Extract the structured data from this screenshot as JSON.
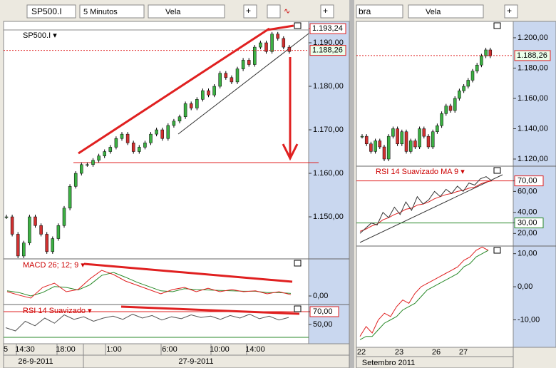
{
  "left": {
    "toolbar": {
      "symbol": "SP500.I",
      "interval": "5 Minutos",
      "style": "Vela"
    },
    "price": {
      "header": "SP500.I ▾",
      "ylim": [
        1140.5,
        1192.95
      ],
      "yticks": [
        {
          "value": 1190,
          "label": "1.190,00"
        },
        {
          "value": 1180,
          "label": "1.180,00"
        },
        {
          "value": 1170,
          "label": "1.170,00"
        },
        {
          "value": 1160,
          "label": "1.160,00"
        },
        {
          "value": 1150,
          "label": "1.150,00"
        }
      ],
      "high": {
        "value": 1193.24,
        "label": "1.193,24"
      },
      "last": {
        "value": 1188.26,
        "label": "1.188,26"
      },
      "closes": [
        1150,
        1146,
        1141,
        1144,
        1150,
        1148,
        1146,
        1142,
        1145,
        1148,
        1152,
        1157,
        1160,
        1162,
        1162,
        1163,
        1164,
        1165,
        1166,
        1168,
        1169,
        1167,
        1165,
        1166,
        1167,
        1169,
        1170,
        1168,
        1171,
        1172,
        1173,
        1176,
        1175,
        1177,
        1179,
        1178,
        1180,
        1183,
        1182,
        1181,
        1184,
        1186,
        1185,
        1189,
        1190,
        1188,
        1192,
        1191,
        1189,
        1188
      ]
    },
    "macd": {
      "header": "MACD 26; 12; 9 ▾",
      "ylim": [
        -2,
        8.5
      ],
      "yticks": [
        {
          "value": 0,
          "label": "0,00"
        }
      ],
      "macd": [
        1.0,
        0.2,
        -0.5,
        2.0,
        3.0,
        1.0,
        1.5,
        4.0,
        6.0,
        5.0,
        3.5,
        2.5,
        1.5,
        0.5,
        1.5,
        2.0,
        1.0,
        1.8,
        1.0,
        1.5,
        1.0,
        1.2,
        0.5,
        1.0,
        0.3
      ],
      "signal": [
        1.2,
        0.8,
        0.0,
        0.8,
        2.2,
        2.0,
        1.4,
        2.6,
        4.8,
        5.5,
        4.4,
        3.2,
        2.2,
        1.2,
        1.0,
        1.7,
        1.5,
        1.4,
        1.3,
        1.2,
        1.1,
        1.1,
        0.8,
        0.8,
        0.6
      ]
    },
    "rsi": {
      "header": "RSI 14 Suavizado ▾",
      "ylim": [
        20,
        80
      ],
      "yticks": [
        {
          "value": 70,
          "label": "70,00"
        },
        {
          "value": 50,
          "label": "50,00"
        }
      ],
      "values": [
        45,
        40,
        55,
        48,
        60,
        52,
        65,
        58,
        62,
        55,
        60,
        63,
        58,
        66,
        60,
        64,
        57,
        62,
        59,
        65,
        61,
        63,
        58,
        64,
        60,
        66,
        59,
        63,
        57,
        61
      ]
    },
    "xticks": [
      "5",
      "14:30",
      "18:00",
      "1:00",
      "6:00",
      "10:00",
      "14:00"
    ],
    "dates": [
      "26-9-2011",
      "27-9-2011"
    ]
  },
  "right": {
    "toolbar": {
      "symbol": "bra",
      "style": "Vela"
    },
    "price": {
      "ylim": [
        1115.3,
        1210.8
      ],
      "yticks": [
        {
          "value": 1200,
          "label": "1.200,00"
        },
        {
          "value": 1180,
          "label": "1.180,00"
        },
        {
          "value": 1160,
          "label": "1.160,00"
        },
        {
          "value": 1140,
          "label": "1.140,00"
        },
        {
          "value": 1120,
          "label": "1.120,00"
        }
      ],
      "last": {
        "value": 1188.26,
        "label": "1.188,26"
      },
      "closes": [
        1135,
        1130,
        1125,
        1132,
        1128,
        1120,
        1135,
        1140,
        1130,
        1138,
        1125,
        1132,
        1128,
        1140,
        1135,
        1128,
        1138,
        1142,
        1150,
        1155,
        1152,
        1160,
        1165,
        1168,
        1172,
        1178,
        1182,
        1188,
        1192,
        1188
      ]
    },
    "rsi": {
      "header": "RSI 14 Suavizado MA 9 ▾",
      "ylim": [
        8,
        84
      ],
      "yticks": [
        {
          "value": 70,
          "label": "70,00"
        },
        {
          "value": 60,
          "label": "60,00"
        },
        {
          "value": 40,
          "label": "40,00"
        },
        {
          "value": 30,
          "label": "30,00"
        },
        {
          "value": 20,
          "label": "20,00"
        }
      ],
      "rsi": [
        20,
        25,
        30,
        28,
        40,
        35,
        45,
        38,
        50,
        42,
        55,
        48,
        52,
        60,
        55,
        62,
        58,
        65,
        60,
        68,
        66,
        72,
        74,
        70
      ],
      "ma": [
        22,
        24,
        27,
        29,
        33,
        35,
        38,
        40,
        43,
        44,
        47,
        48,
        50,
        53,
        55,
        57,
        58,
        60,
        61,
        63,
        64,
        67,
        69,
        70
      ]
    },
    "osc": {
      "ylim": [
        -18.3,
        12.3
      ],
      "yticks": [
        {
          "value": 10,
          "label": "10,00"
        },
        {
          "value": 0,
          "label": "0,00"
        },
        {
          "value": -10,
          "label": "-10,00"
        }
      ],
      "fast": [
        -15,
        -12,
        -14,
        -10,
        -8,
        -9,
        -6,
        -4,
        -5,
        -2,
        0,
        1,
        2,
        3,
        4,
        5,
        6,
        8,
        9,
        11,
        12,
        11
      ],
      "slow": [
        -16,
        -15,
        -15,
        -13,
        -11,
        -10,
        -9,
        -7,
        -6,
        -5,
        -3,
        -1,
        0,
        1,
        2,
        3,
        4,
        6,
        7,
        9,
        10,
        11
      ]
    },
    "xticks": [
      "22",
      "23",
      "26",
      "27"
    ],
    "month": "Setembro 2011"
  }
}
